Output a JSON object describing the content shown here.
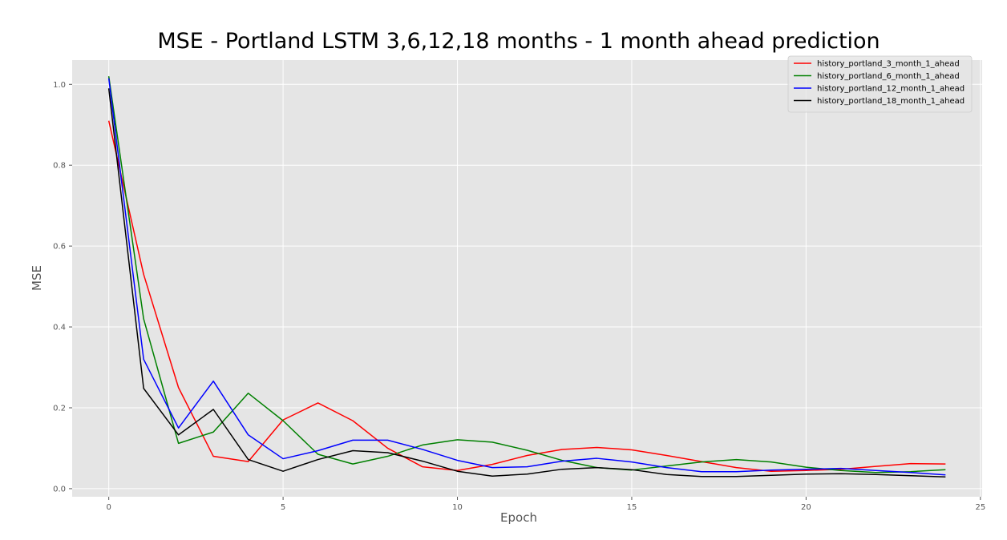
{
  "chart_data": {
    "type": "line",
    "title": "MSE - Portland LSTM 3,6,12,18 months - 1 month ahead prediction",
    "xlabel": "Epoch",
    "ylabel": "MSE",
    "xlim": [
      -1.05,
      25.05
    ],
    "ylim": [
      -0.02,
      1.06
    ],
    "xticks": [
      0,
      5,
      10,
      15,
      20,
      25
    ],
    "yticks": [
      0.0,
      0.2,
      0.4,
      0.6,
      0.8,
      1.0
    ],
    "xtick_labels": [
      "0",
      "5",
      "10",
      "15",
      "20",
      "25"
    ],
    "ytick_labels": [
      "0.0",
      "0.2",
      "0.4",
      "0.6",
      "0.8",
      "1.0"
    ],
    "grid": true,
    "legend_position": "top-right",
    "background": "#e5e5e5",
    "x": [
      0,
      1,
      2,
      3,
      4,
      5,
      6,
      7,
      8,
      9,
      10,
      11,
      12,
      13,
      14,
      15,
      16,
      17,
      18,
      19,
      20,
      21,
      22,
      23,
      24
    ],
    "series": [
      {
        "name": "history_portland_3_month_1_ahead",
        "color": "#ff0000",
        "values": [
          0.91,
          0.53,
          0.25,
          0.08,
          0.067,
          0.17,
          0.212,
          0.168,
          0.1,
          0.054,
          0.045,
          0.06,
          0.082,
          0.097,
          0.102,
          0.096,
          0.082,
          0.067,
          0.052,
          0.043,
          0.045,
          0.048,
          0.055,
          0.062,
          0.061
        ]
      },
      {
        "name": "history_portland_6_month_1_ahead",
        "color": "#008000",
        "values": [
          1.02,
          0.42,
          0.112,
          0.14,
          0.236,
          0.168,
          0.085,
          0.061,
          0.08,
          0.108,
          0.121,
          0.115,
          0.095,
          0.07,
          0.052,
          0.046,
          0.056,
          0.066,
          0.072,
          0.066,
          0.053,
          0.045,
          0.04,
          0.042,
          0.047
        ]
      },
      {
        "name": "history_portland_12_month_1_ahead",
        "color": "#0000ff",
        "values": [
          1.015,
          0.32,
          0.15,
          0.266,
          0.133,
          0.074,
          0.094,
          0.12,
          0.12,
          0.097,
          0.07,
          0.052,
          0.054,
          0.068,
          0.075,
          0.066,
          0.052,
          0.042,
          0.042,
          0.046,
          0.048,
          0.05,
          0.045,
          0.04,
          0.034
        ]
      },
      {
        "name": "history_portland_18_month_1_ahead",
        "color": "#000000",
        "values": [
          0.99,
          0.248,
          0.133,
          0.196,
          0.072,
          0.043,
          0.072,
          0.094,
          0.089,
          0.068,
          0.043,
          0.031,
          0.036,
          0.048,
          0.052,
          0.047,
          0.035,
          0.03,
          0.03,
          0.033,
          0.036,
          0.037,
          0.035,
          0.032,
          0.029
        ]
      }
    ]
  }
}
